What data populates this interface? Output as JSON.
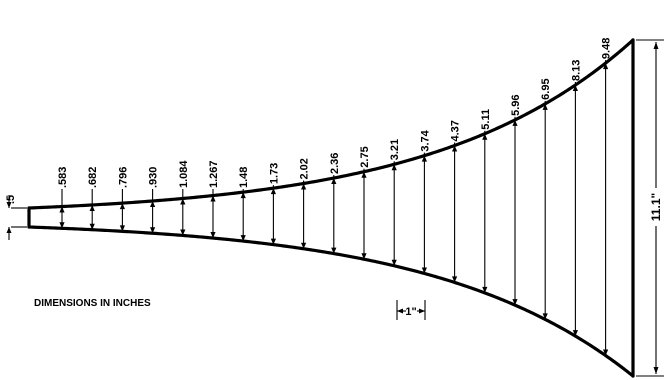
{
  "diagram": {
    "section_labels": [
      ".583",
      ".682",
      ".796",
      ".930",
      "1.084",
      "1.267",
      "1.48",
      "1.73",
      "2.02",
      "2.36",
      "2.75",
      "3.21",
      "3.74",
      "4.37",
      "5.11",
      "5.96",
      "6.95",
      "8.13",
      "9.48"
    ],
    "throat_label": ".5",
    "mouth_label": "11.1\"",
    "spacing_label": "1\"",
    "units_note": "DIMENSIONS IN INCHES"
  }
}
